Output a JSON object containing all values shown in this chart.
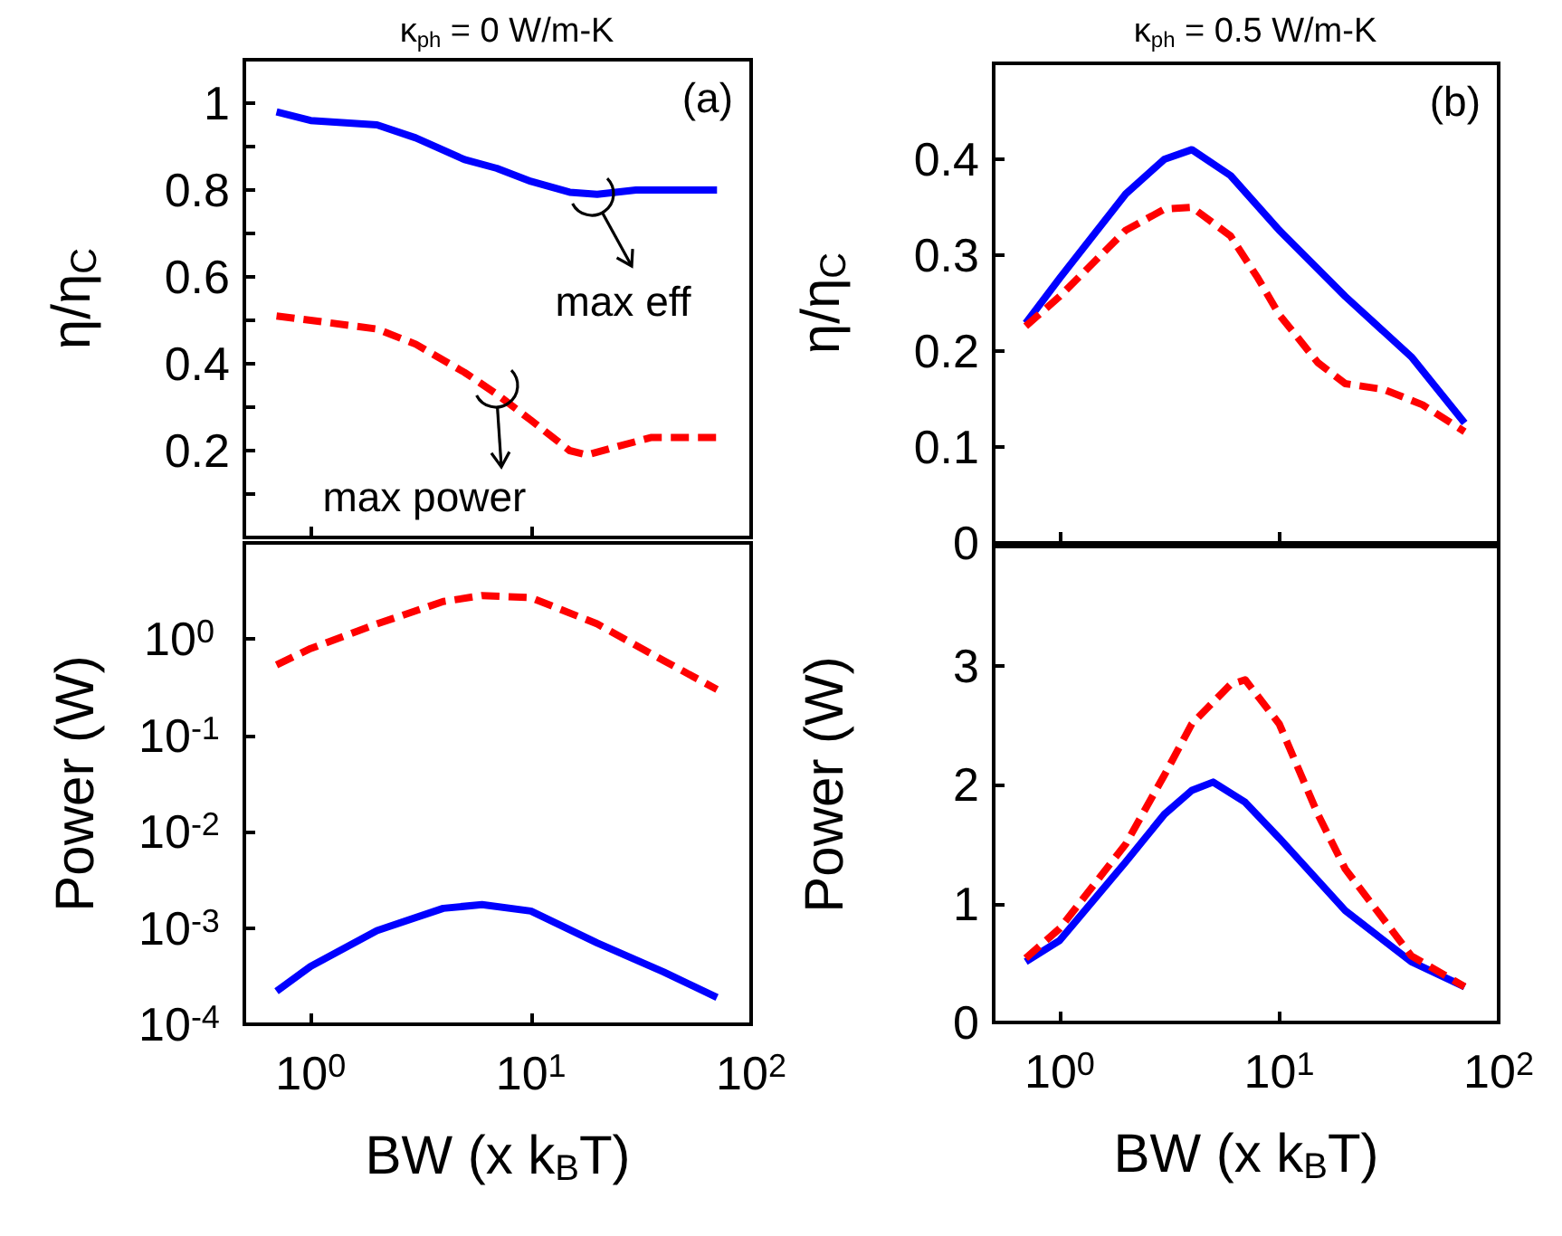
{
  "chart_data": [
    {
      "type": "line",
      "title": "κ$_{ph}$ = 0 W/m-K",
      "ylabel": "η/η$_{C}$",
      "log": "x",
      "tick_labels": "y",
      "marker": "none",
      "xlim": [
        0.5,
        100
      ],
      "xticks": [
        1,
        10,
        100
      ],
      "ylim": [
        0,
        1.1
      ],
      "yticks": [
        {
          "value": 0.1,
          "label": null
        },
        0.2,
        {
          "value": 0.3,
          "label": null
        },
        0.4,
        {
          "value": 0.5,
          "label": null
        },
        0.6,
        {
          "value": 0.7,
          "label": null
        },
        0.8,
        {
          "value": 0.9,
          "label": null
        },
        1
      ],
      "annotations": [
        "(a)",
        {
          "text": "max eff",
          "x": 19,
          "y": 0.79
        },
        {
          "text": "max power",
          "x": 7,
          "y": 0.35
        }
      ],
      "series": [
        {
          "color": "#0000ff",
          "line_style": "solid",
          "x": [
            0.7,
            1,
            2,
            3,
            5,
            7,
            10,
            15,
            20,
            30,
            50,
            70
          ],
          "values": [
            0.98,
            0.96,
            0.95,
            0.92,
            0.87,
            0.85,
            0.82,
            0.795,
            0.79,
            0.8,
            0.8,
            0.8
          ]
        },
        {
          "color": "#ff0000",
          "line_style": "dashed",
          "x": [
            0.7,
            1,
            2,
            3,
            5,
            7,
            10,
            15,
            18,
            25,
            35,
            70
          ],
          "values": [
            0.51,
            0.5,
            0.48,
            0.445,
            0.38,
            0.33,
            0.27,
            0.2,
            0.19,
            0.21,
            0.23,
            0.23
          ]
        }
      ]
    },
    {
      "type": "line",
      "title": "κ$_{ph}$ = 0.5 W/m-K",
      "ylabel": "η/η$_{C}$",
      "log": "x",
      "tick_labels": "y",
      "marker": "none",
      "xlim": [
        0.5,
        100
      ],
      "xticks": [
        1,
        10,
        100
      ],
      "ylim": [
        0,
        0.5
      ],
      "yticks": [
        0,
        0.1,
        0.2,
        0.3,
        0.4
      ],
      "annotations": [
        "(b)"
      ],
      "series": [
        {
          "color": "#0000ff",
          "line_style": "solid",
          "x": [
            0.7,
            1,
            2,
            3,
            4,
            6,
            10,
            20,
            40,
            70
          ],
          "values": [
            0.229,
            0.276,
            0.364,
            0.4,
            0.41,
            0.383,
            0.326,
            0.257,
            0.194,
            0.125
          ]
        },
        {
          "color": "#ff0000",
          "line_style": "dashed",
          "x": [
            0.7,
            1,
            2,
            3,
            4,
            6,
            8,
            10,
            15,
            20,
            30,
            45,
            70
          ],
          "values": [
            0.226,
            0.257,
            0.326,
            0.348,
            0.35,
            0.32,
            0.276,
            0.238,
            0.188,
            0.166,
            0.16,
            0.144,
            0.116
          ]
        }
      ]
    },
    {
      "type": "line",
      "xlabel": "BW (x k$_{B}$T)",
      "ylabel": "Power (W)",
      "log": "xy",
      "marker": "none",
      "xlim": [
        0.5,
        100
      ],
      "xticks": [
        {
          "value": 1,
          "label": "10$^{0}$"
        },
        {
          "value": 10,
          "label": "10$^{1}$"
        },
        {
          "value": 100,
          "label": "10$^{2}$"
        }
      ],
      "ylim": [
        0.0001,
        10
      ],
      "yticks": [
        {
          "value": 0.0001,
          "label": "10$^{-4}$"
        },
        {
          "value": 0.001,
          "label": "10$^{-3}$"
        },
        {
          "value": 0.01,
          "label": "10$^{-2}$"
        },
        {
          "value": 0.1,
          "label": "10$^{-1}$"
        },
        {
          "value": 1,
          "label": "10$^{0}$"
        }
      ],
      "series": [
        {
          "color": "#ff0000",
          "line_style": "dashed",
          "x": [
            0.7,
            1,
            2,
            4,
            6,
            10,
            20,
            40,
            70
          ],
          "values": [
            0.54,
            0.8,
            1.44,
            2.46,
            2.84,
            2.7,
            1.44,
            0.6,
            0.3
          ]
        },
        {
          "color": "#0000ff",
          "line_style": "solid",
          "x": [
            0.7,
            1,
            2,
            4,
            6,
            10,
            20,
            40,
            70
          ],
          "values": [
            0.00022,
            0.0004,
            0.00094,
            0.0016,
            0.00175,
            0.0015,
            0.0007,
            0.00035,
            0.00019
          ]
        }
      ]
    },
    {
      "type": "line",
      "xlabel": "BW (x k$_{B}$T)",
      "ylabel": "Power (W)",
      "log": "x",
      "marker": "none",
      "xlim": [
        0.5,
        100
      ],
      "xticks": [
        {
          "value": 1,
          "label": "10$^{0}$"
        },
        {
          "value": 10,
          "label": "10$^{1}$"
        },
        {
          "value": 100,
          "label": "10$^{2}$"
        }
      ],
      "ylim": [
        0,
        4
      ],
      "yticks": [
        0,
        1,
        2,
        3
      ],
      "series": [
        {
          "color": "#0000ff",
          "line_style": "solid",
          "x": [
            0.7,
            1,
            2,
            3,
            4,
            5,
            7,
            10,
            20,
            40,
            70
          ],
          "values": [
            0.51,
            0.69,
            1.35,
            1.75,
            1.95,
            2.02,
            1.85,
            1.55,
            0.94,
            0.51,
            0.3
          ]
        },
        {
          "color": "#ff0000",
          "line_style": "dashed",
          "x": [
            0.7,
            1,
            2,
            3,
            4,
            6,
            7,
            10,
            15,
            20,
            40,
            70
          ],
          "values": [
            0.54,
            0.79,
            1.5,
            2.08,
            2.51,
            2.84,
            2.88,
            2.51,
            1.75,
            1.29,
            0.56,
            0.3
          ]
        }
      ]
    }
  ]
}
